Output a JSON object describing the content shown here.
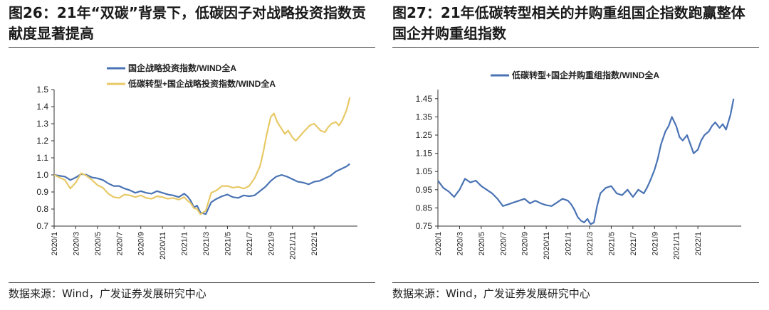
{
  "figures": [
    {
      "title": "图26：21年“双碳”背景下，低碳因子对战略投资指数贡献度显著提高",
      "source": "数据来源：Wind，广发证券发展研究中心"
    },
    {
      "title": "图27：21年低碳转型相关的并购重组国企指数跑赢整体国企并购重组指数",
      "source": "数据来源：Wind，广发证券发展研究中心"
    }
  ],
  "chart_data": [
    {
      "type": "line",
      "title": "图26：21年“双碳”背景下，低碳因子对战略投资指数贡献度显著提高",
      "ylim": [
        0.7,
        1.5
      ],
      "yticks": [
        "1.5",
        "1.4",
        "1.3",
        "1.2",
        "1.1",
        "1.0",
        "0.9",
        "0.8",
        "0.7"
      ],
      "xlim": [
        0,
        28
      ],
      "x_tick_labels": [
        "2020/1",
        "2020/3",
        "2020/5",
        "2020/7",
        "2020/9",
        "2020/11",
        "2021/1",
        "2021/3",
        "2021/5",
        "2021/7",
        "2021/9",
        "2021/11",
        "2022/1"
      ],
      "legend_position": "top-center",
      "series": [
        {
          "name": "国企战略投资指数/WIND全A",
          "color": "#4a73b4",
          "x": [
            0,
            1,
            1.5,
            2,
            2.5,
            3,
            3.5,
            4,
            4.5,
            5,
            5.5,
            6,
            6.5,
            7,
            7.5,
            8,
            8.5,
            9,
            9.5,
            10,
            10.5,
            11,
            11.5,
            12,
            12.3,
            12.6,
            12.9,
            13.2,
            13.5,
            14,
            14.5,
            15,
            15.5,
            16,
            16.5,
            17,
            17.5,
            18,
            18.5,
            19,
            19.5,
            20,
            20.5,
            21,
            21.5,
            22,
            22.5,
            23,
            23.5,
            24,
            24.5,
            25,
            25.5,
            26,
            26.5,
            27,
            27.3
          ],
          "values": [
            1.0,
            0.99,
            0.97,
            0.985,
            1.005,
            1.0,
            0.985,
            0.98,
            0.97,
            0.95,
            0.935,
            0.935,
            0.92,
            0.91,
            0.895,
            0.905,
            0.895,
            0.89,
            0.905,
            0.895,
            0.885,
            0.88,
            0.87,
            0.89,
            0.875,
            0.85,
            0.81,
            0.82,
            0.78,
            0.77,
            0.84,
            0.86,
            0.875,
            0.885,
            0.87,
            0.865,
            0.88,
            0.875,
            0.88,
            0.905,
            0.93,
            0.965,
            0.99,
            1.0,
            0.99,
            0.975,
            0.96,
            0.955,
            0.945,
            0.96,
            0.965,
            0.98,
            0.995,
            1.02,
            1.035,
            1.05,
            1.065
          ]
        },
        {
          "name": "低碳转型+国企战略投资指数/WIND全A",
          "color": "#e8c967",
          "x": [
            0,
            1,
            1.5,
            2,
            2.5,
            3,
            3.5,
            4,
            4.5,
            5,
            5.5,
            6,
            6.5,
            7,
            7.5,
            8,
            8.5,
            9,
            9.5,
            10,
            10.5,
            11,
            11.5,
            12,
            12.3,
            12.6,
            12.9,
            13.2,
            13.5,
            14,
            14.5,
            15,
            15.5,
            16,
            16.5,
            17,
            17.5,
            18,
            18.5,
            19,
            19.3,
            19.6,
            20,
            20.3,
            20.6,
            21,
            21.3,
            21.6,
            22,
            22.3,
            22.6,
            23,
            23.3,
            23.6,
            24,
            24.3,
            24.6,
            25,
            25.3,
            25.6,
            26,
            26.3,
            26.6,
            27,
            27.3
          ],
          "values": [
            1.0,
            0.97,
            0.92,
            0.955,
            1.01,
            0.995,
            0.97,
            0.94,
            0.925,
            0.89,
            0.87,
            0.865,
            0.885,
            0.88,
            0.87,
            0.88,
            0.865,
            0.86,
            0.875,
            0.87,
            0.86,
            0.865,
            0.855,
            0.87,
            0.85,
            0.835,
            0.805,
            0.8,
            0.77,
            0.79,
            0.895,
            0.91,
            0.935,
            0.935,
            0.925,
            0.93,
            0.92,
            0.935,
            0.98,
            1.05,
            1.13,
            1.23,
            1.34,
            1.36,
            1.31,
            1.27,
            1.24,
            1.26,
            1.22,
            1.2,
            1.22,
            1.25,
            1.27,
            1.29,
            1.3,
            1.28,
            1.26,
            1.25,
            1.28,
            1.3,
            1.31,
            1.29,
            1.32,
            1.38,
            1.455
          ]
        }
      ]
    },
    {
      "type": "line",
      "title": "图27：21年低碳转型相关的并购重组国企指数跑赢整体国企并购重组指数",
      "ylim": [
        0.75,
        1.5
      ],
      "yticks": [
        "1.45",
        "1.35",
        "1.25",
        "1.15",
        "1.05",
        "0.95",
        "0.85",
        "0.75"
      ],
      "xlim": [
        0,
        28
      ],
      "x_tick_labels": [
        "2020/1",
        "2020/3",
        "2020/5",
        "2020/7",
        "2020/9",
        "2020/11",
        "2021/1",
        "2021/3",
        "2021/5",
        "2021/7",
        "2021/9",
        "2021/11",
        "2022/1"
      ],
      "legend_position": "top-center",
      "series": [
        {
          "name": "低碳转型+国企并购重组指数/WIND全A",
          "color": "#4a73b4",
          "x": [
            0,
            0.5,
            1,
            1.5,
            2,
            2.5,
            3,
            3.5,
            4,
            4.5,
            5,
            5.5,
            6,
            6.5,
            7,
            7.5,
            8,
            8.5,
            9,
            9.5,
            10,
            10.5,
            11,
            11.5,
            12,
            12.3,
            12.6,
            12.9,
            13.2,
            13.5,
            13.8,
            14.1,
            14.4,
            14.7,
            15,
            15.5,
            16,
            16.5,
            17,
            17.5,
            18,
            18.5,
            19,
            19.3,
            19.6,
            20,
            20.3,
            20.6,
            21,
            21.3,
            21.6,
            22,
            22.3,
            22.6,
            23,
            23.3,
            23.6,
            24,
            24.3,
            24.6,
            25,
            25.3,
            25.6,
            26,
            26.3,
            26.6,
            27,
            27.3
          ],
          "values": [
            1.0,
            0.96,
            0.94,
            0.91,
            0.95,
            1.01,
            0.99,
            1.0,
            0.97,
            0.95,
            0.93,
            0.9,
            0.86,
            0.87,
            0.88,
            0.89,
            0.9,
            0.875,
            0.89,
            0.875,
            0.865,
            0.86,
            0.88,
            0.9,
            0.89,
            0.87,
            0.84,
            0.8,
            0.78,
            0.77,
            0.79,
            0.76,
            0.77,
            0.86,
            0.93,
            0.96,
            0.97,
            0.93,
            0.92,
            0.95,
            0.91,
            0.95,
            0.93,
            0.96,
            1.0,
            1.06,
            1.12,
            1.2,
            1.27,
            1.3,
            1.35,
            1.3,
            1.24,
            1.22,
            1.25,
            1.2,
            1.15,
            1.17,
            1.22,
            1.25,
            1.27,
            1.3,
            1.32,
            1.29,
            1.31,
            1.28,
            1.36,
            1.45
          ]
        }
      ]
    }
  ]
}
